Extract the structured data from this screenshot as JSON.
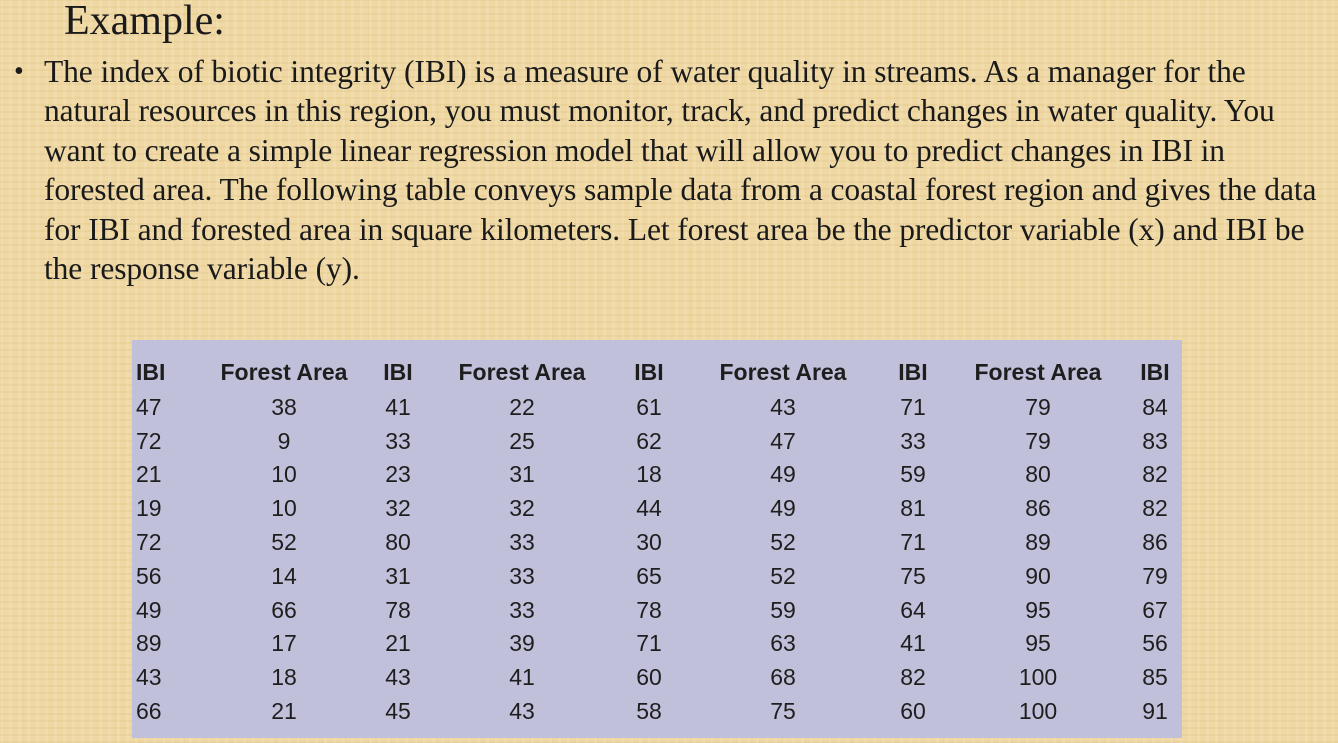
{
  "slide": {
    "title": "Example:",
    "bullet": "The index of biotic integrity (IBI) is a measure of water quality in streams. As a manager for the natural resources in this region, you must monitor, track, and predict changes in water quality. You want to create a simple linear regression model that will allow you to predict changes in IBI in forested area. The following table conveys sample data from a coastal forest region and gives the data for IBI and forested area in square kilometers. Let forest area be the predictor variable (x) and IBI be the response variable (y)."
  },
  "table": {
    "headers": [
      "IBI",
      "Forest Area",
      "IBI",
      "Forest Area",
      "IBI",
      "Forest Area",
      "IBI",
      "Forest Area",
      "IBI"
    ],
    "rows": [
      [
        "47",
        "38",
        "41",
        "22",
        "61",
        "43",
        "71",
        "79",
        "84"
      ],
      [
        "72",
        "9",
        "33",
        "25",
        "62",
        "47",
        "33",
        "79",
        "83"
      ],
      [
        "21",
        "10",
        "23",
        "31",
        "18",
        "49",
        "59",
        "80",
        "82"
      ],
      [
        "19",
        "10",
        "32",
        "32",
        "44",
        "49",
        "81",
        "86",
        "82"
      ],
      [
        "72",
        "52",
        "80",
        "33",
        "30",
        "52",
        "71",
        "89",
        "86"
      ],
      [
        "56",
        "14",
        "31",
        "33",
        "65",
        "52",
        "75",
        "90",
        "79"
      ],
      [
        "49",
        "66",
        "78",
        "33",
        "78",
        "59",
        "64",
        "95",
        "67"
      ],
      [
        "89",
        "17",
        "21",
        "39",
        "71",
        "63",
        "41",
        "95",
        "56"
      ],
      [
        "43",
        "18",
        "43",
        "41",
        "60",
        "68",
        "82",
        "100",
        "85"
      ],
      [
        "66",
        "21",
        "45",
        "43",
        "58",
        "75",
        "60",
        "100",
        "91"
      ]
    ]
  },
  "colors": {
    "background": "#efd8a3",
    "table_background": "#c0c0da",
    "text": "#1a1a1a"
  }
}
